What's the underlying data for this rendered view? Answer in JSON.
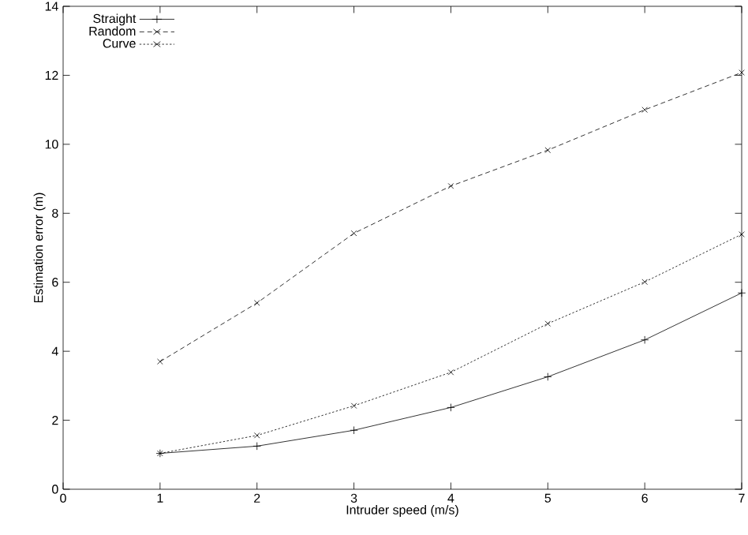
{
  "chart_data": {
    "type": "line",
    "xlabel": "Intruder speed (m/s)",
    "ylabel": "Estimation error (m)",
    "x": [
      1,
      2,
      3,
      4,
      5,
      6,
      7
    ],
    "series": [
      {
        "name": "Straight",
        "color": "#000000",
        "marker": "plus",
        "line_style": "solid",
        "values": [
          1.04,
          1.25,
          1.71,
          2.37,
          3.26,
          4.33,
          5.69
        ]
      },
      {
        "name": "Random",
        "color": "#000000",
        "marker": "cross",
        "line_style": "dashed",
        "values": [
          3.7,
          5.4,
          7.42,
          8.79,
          9.83,
          11.0,
          12.08
        ]
      },
      {
        "name": "Curve",
        "color": "#000000",
        "marker": "cross",
        "line_style": "dotted",
        "values": [
          1.04,
          1.56,
          2.42,
          3.39,
          4.8,
          6.01,
          7.39
        ]
      }
    ],
    "xlim": [
      0,
      7
    ],
    "ylim": [
      0,
      14
    ],
    "xticks": [
      0,
      1,
      2,
      3,
      4,
      5,
      6,
      7
    ],
    "yticks": [
      0,
      2,
      4,
      6,
      8,
      10,
      12,
      14
    ],
    "legend": "top left",
    "grid": false
  }
}
